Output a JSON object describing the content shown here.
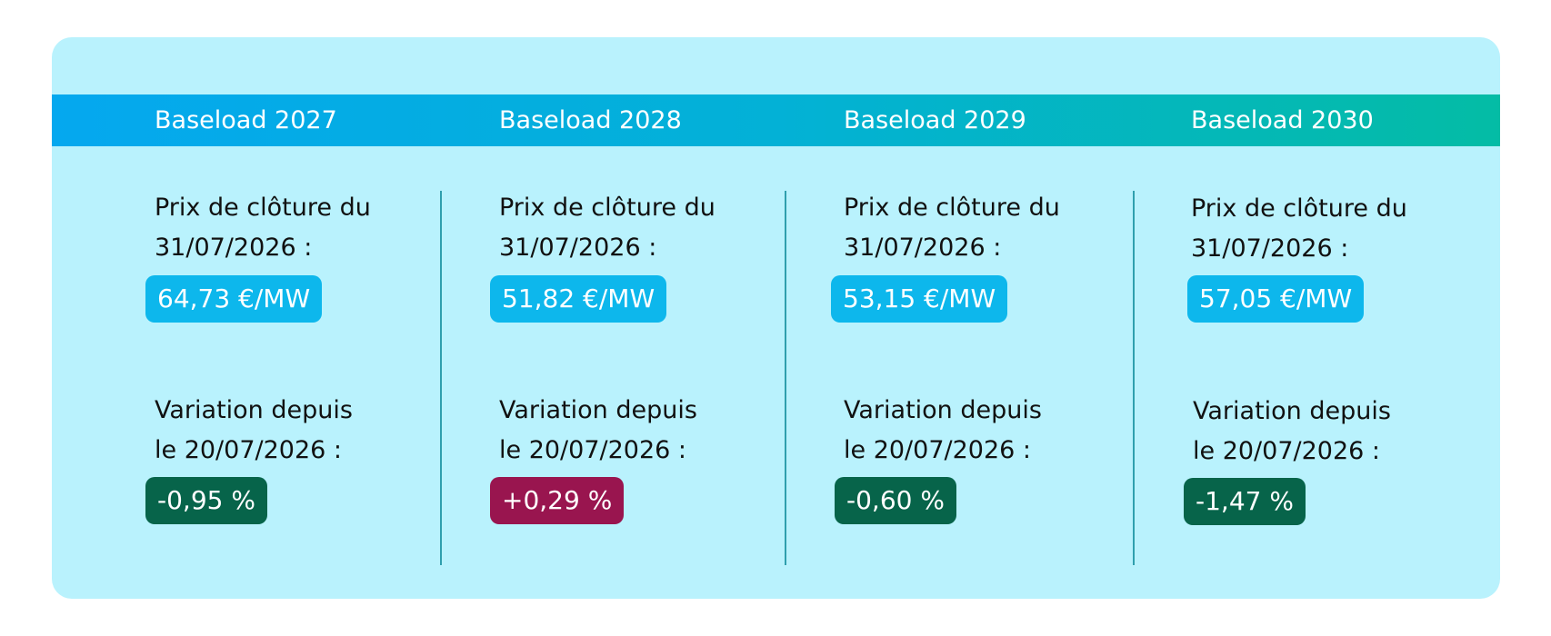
{
  "colors": {
    "card_background": "#b9f2fd",
    "header_gradient_start": "#05a8ef",
    "header_gradient_end": "#04bca5",
    "price_badge": "#0db7ec",
    "variation_negative": "#07644a",
    "variation_positive": "#99154f"
  },
  "columns": [
    {
      "title": "Baseload 2027",
      "price_label_line1": "Prix de clôture du",
      "price_label_line2": "31/07/2026 :",
      "price": "64,73 €/MW",
      "variation_label_line1": "Variation depuis",
      "variation_label_line2": "le 20/07/2026 :",
      "variation": "-0,95 %",
      "variation_sign": "negative"
    },
    {
      "title": "Baseload 2028",
      "price_label_line1": "Prix de clôture du",
      "price_label_line2": "31/07/2026 :",
      "price": "51,82 €/MW",
      "variation_label_line1": "Variation depuis",
      "variation_label_line2": "le 20/07/2026 :",
      "variation": "+0,29 %",
      "variation_sign": "positive"
    },
    {
      "title": "Baseload 2029",
      "price_label_line1": "Prix de clôture du",
      "price_label_line2": "31/07/2026 :",
      "price": "53,15 €/MW",
      "variation_label_line1": "Variation depuis",
      "variation_label_line2": "le 20/07/2026 :",
      "variation": "-0,60 %",
      "variation_sign": "negative"
    },
    {
      "title": "Baseload 2030",
      "price_label_line1": "Prix de clôture du",
      "price_label_line2": "31/07/2026 :",
      "price": "57,05 €/MW",
      "variation_label_line1": "Variation depuis",
      "variation_label_line2": "le 20/07/2026 :",
      "variation": "-1,47 %",
      "variation_sign": "negative"
    }
  ]
}
